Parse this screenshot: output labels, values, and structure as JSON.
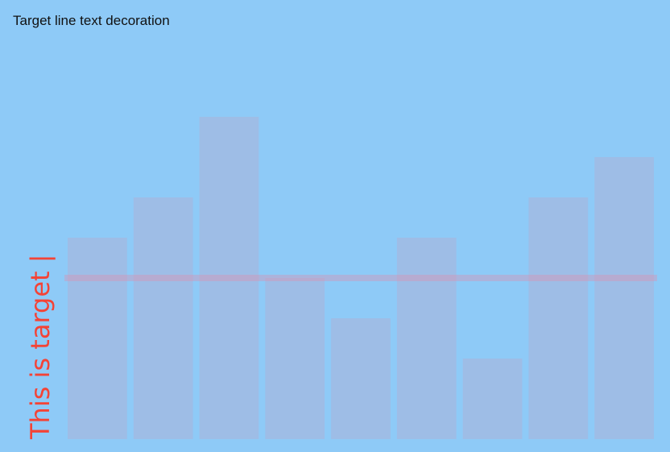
{
  "title": "Target line text decoration",
  "chart_data": {
    "type": "bar",
    "categories": [
      "",
      "",
      "",
      "",
      "",
      "",
      "",
      "",
      ""
    ],
    "values": [
      5,
      6,
      8,
      4,
      3,
      5,
      2,
      6,
      7
    ],
    "ylim": [
      0,
      10
    ],
    "grid": false,
    "legend": "none",
    "bar_color": "#9ebde6",
    "target": {
      "value": 4,
      "label": "This is target |",
      "line_color": "#e48aa6",
      "label_color": "#f44336"
    }
  }
}
